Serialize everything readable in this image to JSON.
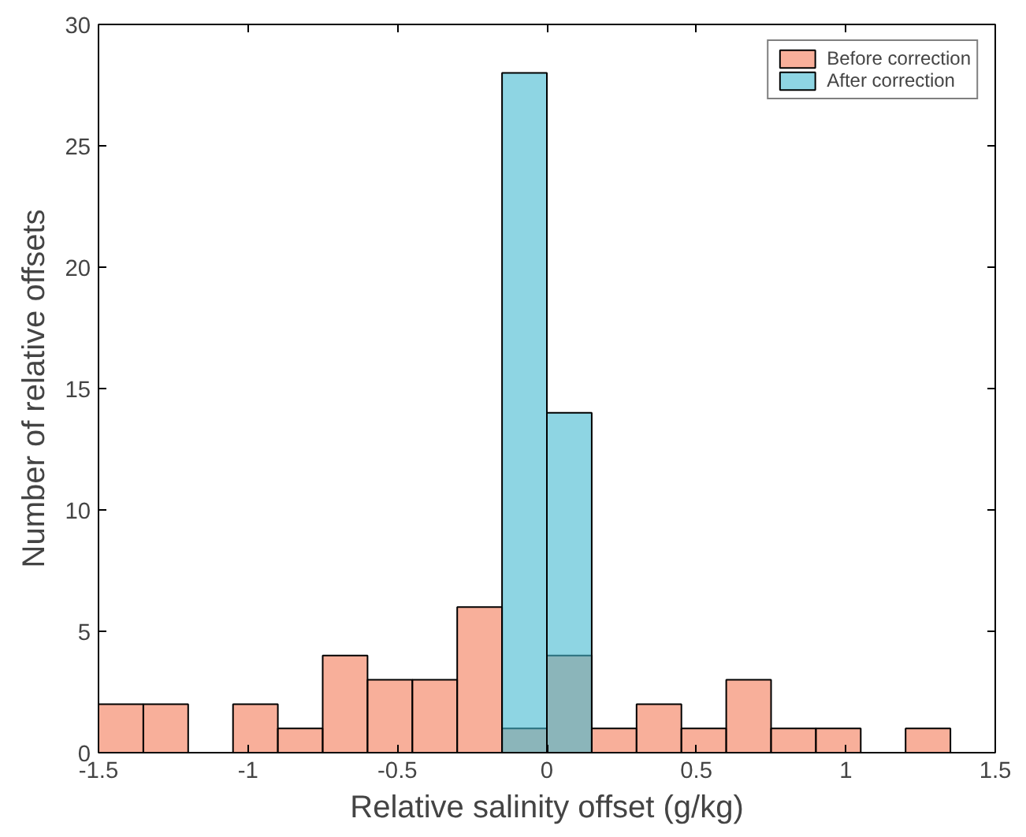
{
  "chart_data": {
    "type": "histogram",
    "xlabel": "Relative salinity offset (g/kg)",
    "ylabel": "Number of relative offsets",
    "bins": [
      -1.5,
      -1.35,
      -1.2,
      -1.05,
      -0.9,
      -0.75,
      -0.6,
      -0.45,
      -0.3,
      -0.15,
      0,
      0.15,
      0.3,
      0.45,
      0.6,
      0.75,
      0.9,
      1.05,
      1.2,
      1.35,
      1.5
    ],
    "series": [
      {
        "name": "Before correction",
        "color": "#f8af9a",
        "values": [
          2,
          2,
          0,
          2,
          1,
          4,
          3,
          3,
          6,
          1,
          4,
          1,
          2,
          1,
          3,
          1,
          1,
          0,
          1,
          0
        ]
      },
      {
        "name": "After correction",
        "color": "#8ed5e3",
        "bins": [
          -0.15,
          0,
          0.15
        ],
        "values": [
          28,
          14
        ]
      }
    ],
    "xlim": [
      -1.5,
      1.5
    ],
    "xticks": [
      -1.5,
      -1,
      -0.5,
      0,
      0.5,
      1,
      1.5
    ],
    "ylim": [
      0,
      30
    ],
    "yticks": [
      0,
      5,
      10,
      15,
      20,
      25,
      30
    ],
    "grid": false,
    "legend": "top right"
  }
}
